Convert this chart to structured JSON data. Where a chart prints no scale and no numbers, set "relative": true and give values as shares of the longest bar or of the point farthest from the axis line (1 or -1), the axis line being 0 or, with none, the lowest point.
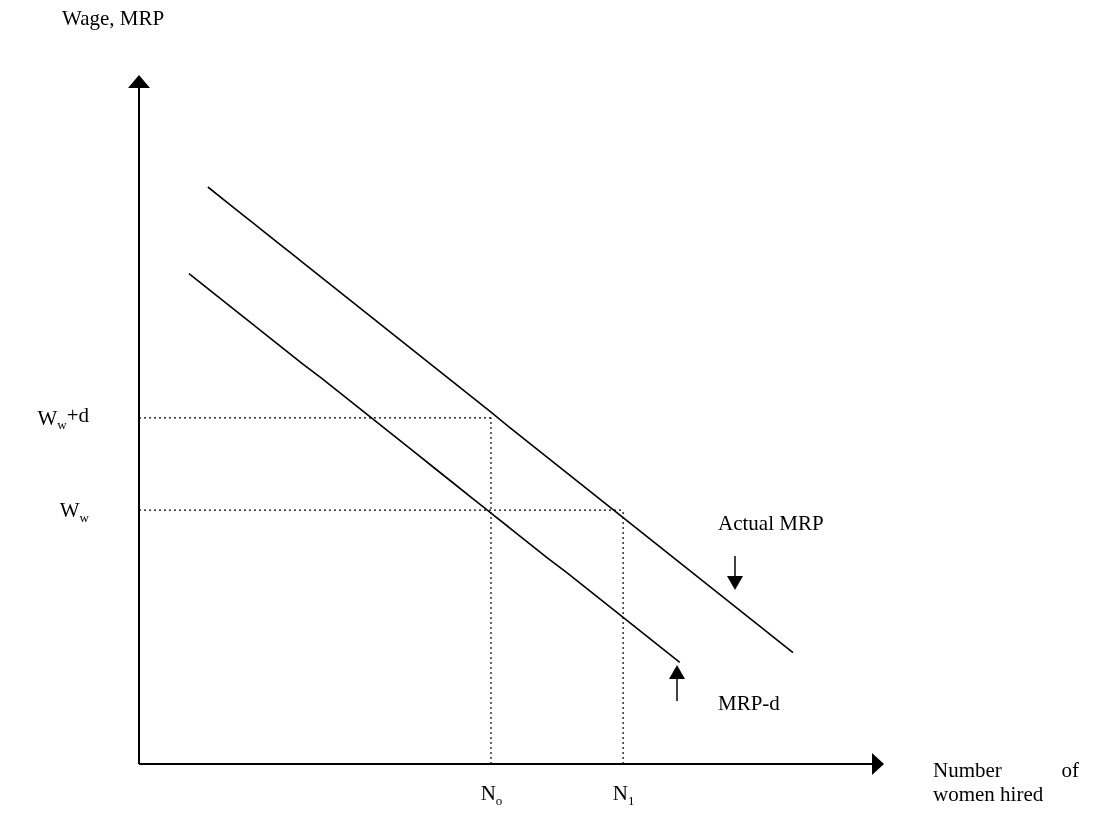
{
  "chart_data": {
    "type": "line",
    "relative": true,
    "grid": false,
    "legend": false,
    "marker": "none",
    "line_style": "solid",
    "categories": [
      null,
      null,
      null,
      null,
      null,
      null,
      null,
      null,
      null,
      null,
      null,
      null,
      null,
      null,
      null,
      null,
      "N$_{o}$",
      null,
      null,
      null,
      null,
      null,
      null,
      "N$_{1}$",
      null,
      null,
      null,
      null,
      null,
      null,
      null,
      null,
      null
    ],
    "series": [
      {
        "color": "#000000",
        "values": [
          null,
          1.0,
          0.974,
          0.948,
          0.922,
          0.896,
          0.87,
          0.844,
          0.818,
          0.792,
          0.766,
          0.74,
          0.714,
          0.688,
          0.662,
          0.636,
          0.61,
          0.583,
          0.557,
          0.531,
          0.505,
          0.479,
          0.453,
          0.427,
          0.401,
          0.375,
          0.349,
          0.323,
          0.297,
          0.271,
          0.245,
          0.219,
          0.193
        ]
      },
      {
        "color": "#000000",
        "values": [
          0.85,
          0.824,
          0.798,
          0.772,
          0.746,
          0.72,
          0.694,
          0.669,
          0.643,
          0.617,
          0.591,
          0.565,
          0.539,
          0.513,
          0.487,
          0.461,
          0.435,
          0.409,
          0.383,
          0.357,
          0.332,
          0.306,
          0.28,
          0.254,
          0.228,
          0.202,
          0.176,
          null,
          null,
          null,
          null,
          null,
          null
        ]
      }
    ],
    "ref_lines": [
      {
        "axis": "x",
        "value": "N$_{o}$",
        "color": "#000000",
        "line_style": "dotted"
      },
      {
        "axis": "x",
        "value": "N$_{1}$",
        "color": "#000000",
        "line_style": "dotted"
      },
      {
        "axis": "y",
        "value": 0.6,
        "label": "W$_{w}$+d",
        "color": "#000000",
        "line_style": "dotted"
      },
      {
        "axis": "y",
        "value": 0.44,
        "label": "W$_{w}$",
        "color": "#000000",
        "line_style": "dotted"
      }
    ],
    "annotations": [
      "Actual MRP",
      "MRP-d",
      "Wage, MRP",
      "Number of women hired"
    ]
  }
}
